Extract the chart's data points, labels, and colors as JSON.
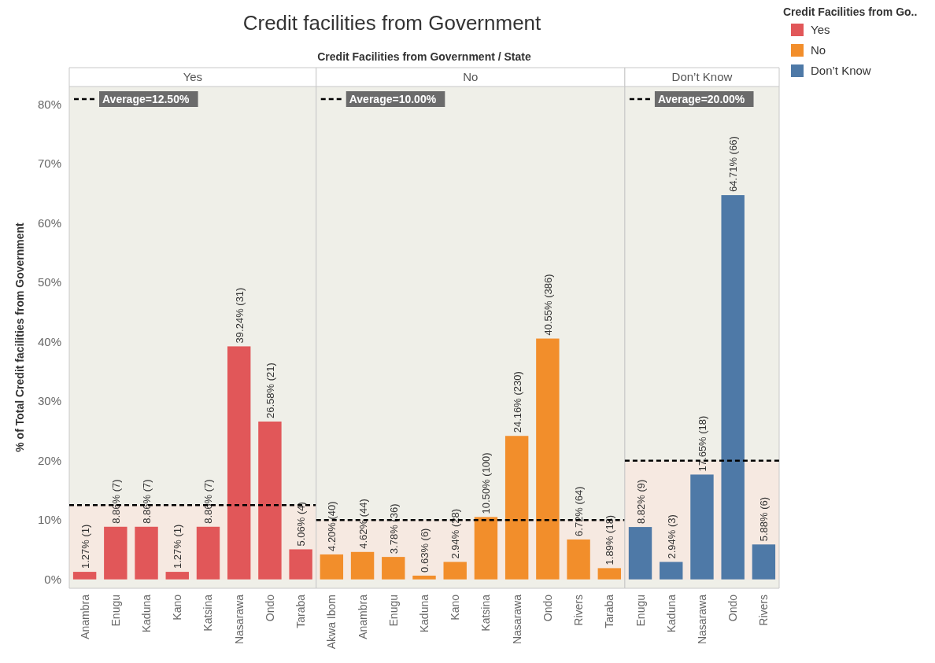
{
  "chart_data": [
    {
      "type": "bar",
      "title": "Credit facilities from Government",
      "xlabel": "Credit Facilities from Government / State",
      "ylabel": "% of Total Credit facilities from Government",
      "legend_title": "Credit Facilities from Go..",
      "legend": "top right",
      "categories": [
        "Anambra",
        "Enugu",
        "Kaduna",
        "Kano",
        "Katsina",
        "Nasarawa",
        "Ondo",
        "Taraba"
      ],
      "series": [
        {
          "name": "Yes",
          "color": "#e15759",
          "values": [
            1.27,
            8.86,
            8.86,
            1.27,
            8.86,
            39.24,
            26.58,
            5.06
          ],
          "value_labels": [
            "1.27% (1)",
            "8.86% (7)",
            "8.86% (7)",
            "1.27% (1)",
            "8.86% (7)",
            "39.24% (31)",
            "26.58% (21)",
            "5.06% (4)"
          ]
        }
      ],
      "ylim": [
        -1.5,
        83
      ],
      "yticks": [
        {
          "value": 0,
          "label": "0%"
        },
        {
          "value": 10,
          "label": "10%"
        },
        {
          "value": 20,
          "label": "20%"
        },
        {
          "value": 30,
          "label": "30%"
        },
        {
          "value": 40,
          "label": "40%"
        },
        {
          "value": 50,
          "label": "50%"
        },
        {
          "value": 60,
          "label": "60%"
        },
        {
          "value": 70,
          "label": "70%"
        },
        {
          "value": 80,
          "label": "80%"
        }
      ],
      "ref_lines": [
        {
          "axis": "y",
          "value": 12.5,
          "label": "Average=12.50%",
          "color": "#000000",
          "line_style": "dashed"
        }
      ],
      "bands": [
        {
          "axis": "y",
          "from": 0,
          "to": 12.5,
          "color": "#f6e9e1"
        }
      ]
    },
    {
      "type": "bar",
      "legend": "top right",
      "tick_labels": "x",
      "categories": [
        "Akwa Ibom",
        "Anambra",
        "Enugu",
        "Kaduna",
        "Kano",
        "Katsina",
        "Nasarawa",
        "Ondo",
        "Rivers",
        "Taraba"
      ],
      "series": [
        {
          "name": "No",
          "color": "#f28e2b",
          "values": [
            4.2,
            4.62,
            3.78,
            0.63,
            2.94,
            10.5,
            24.16,
            40.55,
            6.72,
            1.89
          ],
          "value_labels": [
            "4.20% (40)",
            "4.62% (44)",
            "3.78% (36)",
            "0.63% (6)",
            "2.94% (28)",
            "10.50% (100)",
            "24.16% (230)",
            "40.55% (386)",
            "6.72% (64)",
            "1.89% (18)"
          ]
        }
      ],
      "ylim": [
        -1.5,
        83
      ],
      "ref_lines": [
        {
          "axis": "y",
          "value": 10,
          "label": "Average=10.00%",
          "color": "#000000",
          "line_style": "dashed"
        }
      ],
      "bands": [
        {
          "axis": "y",
          "from": 0,
          "to": 10,
          "color": "#f6e9e1"
        }
      ]
    },
    {
      "type": "bar",
      "legend": "top right",
      "tick_labels": "x",
      "categories": [
        "Enugu",
        "Kaduna",
        "Nasarawa",
        "Ondo",
        "Rivers"
      ],
      "series": [
        {
          "name": "Don’t Know",
          "color": "#4e79a7",
          "values": [
            8.82,
            2.94,
            17.65,
            64.71,
            5.88
          ],
          "value_labels": [
            "8.82% (9)",
            "2.94% (3)",
            "17.65% (18)",
            "64.71% (66)",
            "5.88% (6)"
          ]
        }
      ],
      "ylim": [
        -1.5,
        83
      ],
      "ref_lines": [
        {
          "axis": "y",
          "value": 20,
          "label": "Average=20.00%",
          "color": "#000000",
          "line_style": "dashed"
        }
      ],
      "bands": [
        {
          "axis": "y",
          "from": 0,
          "to": 20,
          "color": "#f6e9e1"
        }
      ]
    }
  ]
}
